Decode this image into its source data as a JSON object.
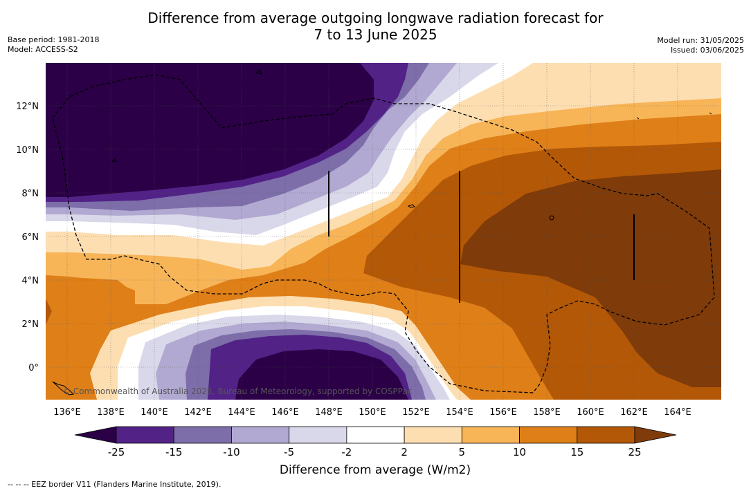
{
  "title_line1": "Difference from average outgoing longwave radiation forecast for",
  "title_line2": "7 to 13 June 2025",
  "meta_left": {
    "base_period": "Base period: 1981-2018",
    "model": "Model: ACCESS-S2"
  },
  "meta_right": {
    "model_run": "Model run: 31/05/2025",
    "issued": "Issued: 03/06/2025"
  },
  "map": {
    "lon_labels": [
      "136°E",
      "138°E",
      "140°E",
      "142°E",
      "144°E",
      "146°E",
      "148°E",
      "150°E",
      "152°E",
      "154°E",
      "156°E",
      "158°E",
      "160°E",
      "162°E",
      "164°E"
    ],
    "lat_labels": [
      "12°N",
      "10°N",
      "8°N",
      "6°N",
      "4°N",
      "2°N",
      "0°"
    ],
    "lon_range": [
      134.9,
      165.9
    ],
    "lat_range": [
      -1.5,
      13.9
    ],
    "copyright": "© Commonwealth of Australia 2025, Bureau of Meteorology, supported by COSPPac"
  },
  "colorbar": {
    "levels": [
      "-25",
      "-15",
      "-10",
      "-5",
      "-2",
      "2",
      "5",
      "10",
      "15",
      "25"
    ],
    "colors": [
      "#2b0047",
      "#522287",
      "#7d6eaa",
      "#b1a9d1",
      "#d9d8ea",
      "#ffffff",
      "#fddeb1",
      "#f7b558",
      "#df7f18",
      "#b35807",
      "#7f3b09"
    ],
    "title": "Difference from average (W/m2)"
  },
  "footer": "--  --  -- EEZ border V11 (Flanders Marine Institute, 2019)."
}
